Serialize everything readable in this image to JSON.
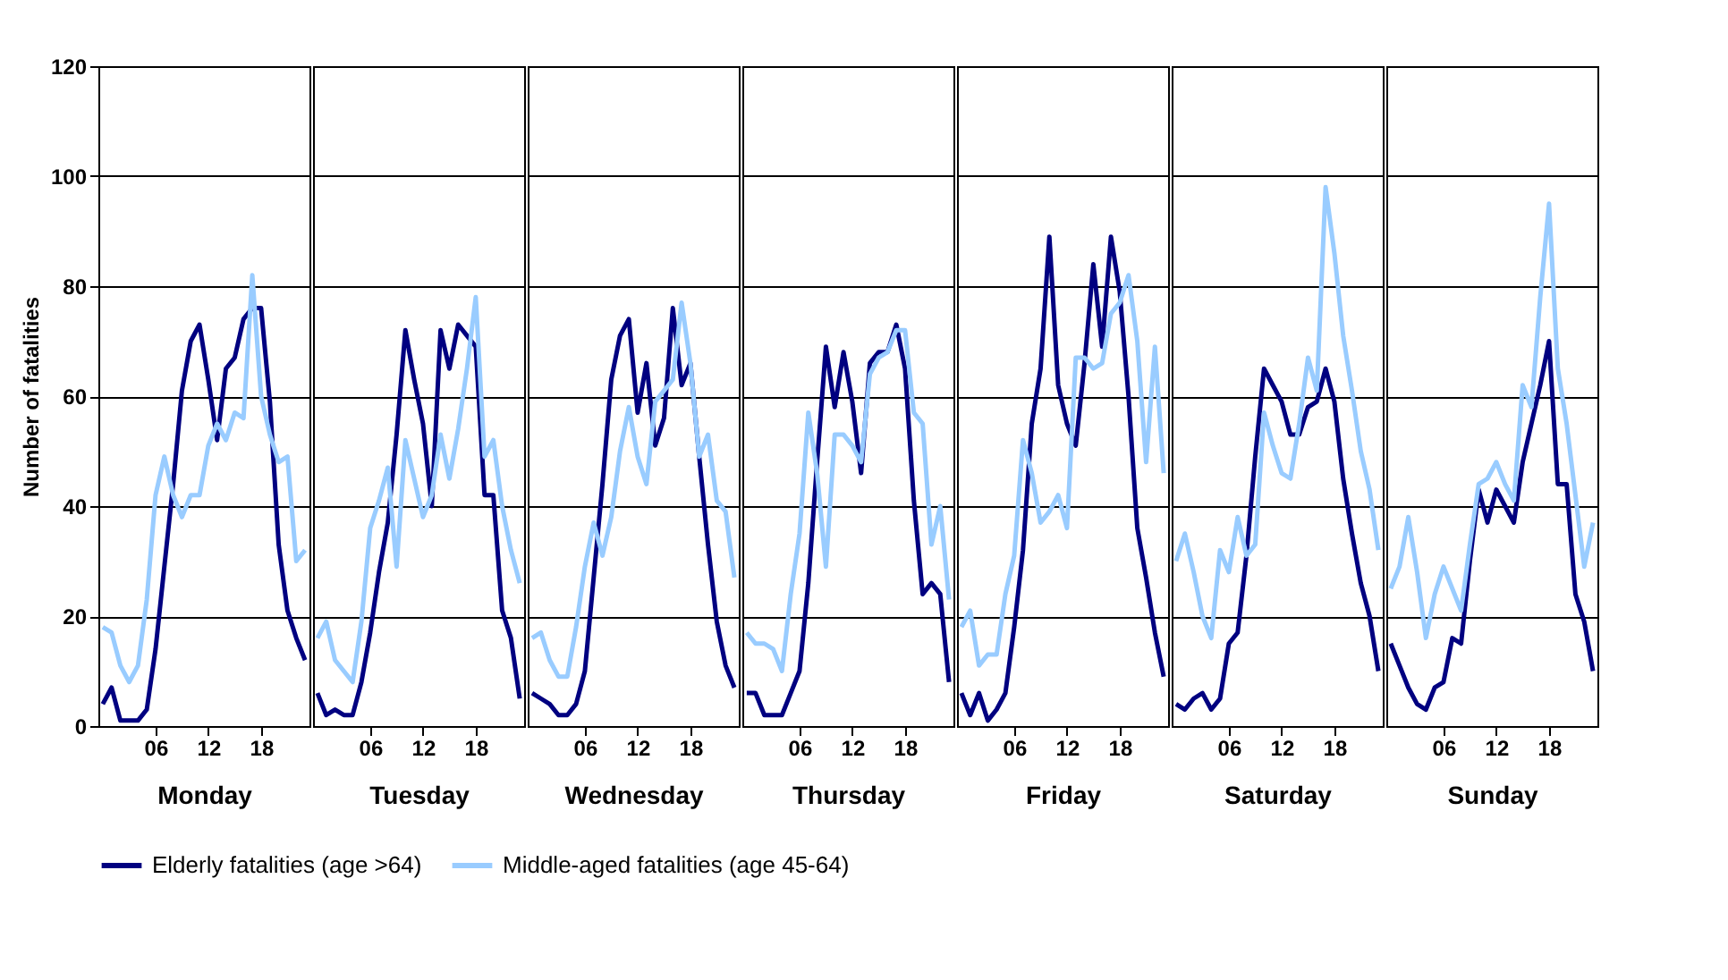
{
  "chart_data": [
    {
      "type": "line",
      "xlabel": "Monday",
      "ylabel": "Number of fatalities",
      "x": [
        0,
        1,
        2,
        3,
        4,
        5,
        6,
        7,
        8,
        9,
        10,
        11,
        12,
        13,
        14,
        15,
        16,
        17,
        18,
        19,
        20,
        21,
        22,
        23
      ],
      "xlim": [
        -0.5,
        23.5
      ],
      "xticks": [
        {
          "value": 6,
          "label": "06"
        },
        {
          "value": 12,
          "label": "12"
        },
        {
          "value": 18,
          "label": "18"
        }
      ],
      "ylim": [
        0,
        120
      ],
      "yticks": [
        0,
        20,
        40,
        60,
        80,
        100,
        120
      ],
      "grid": "y",
      "legend": "bottom",
      "marker": "none",
      "line_style": "solid",
      "series": [
        {
          "name": "Elderly fatalities (age >64)",
          "color": "#000080",
          "values": [
            4,
            7,
            1,
            1,
            1,
            3,
            14,
            29,
            44,
            61,
            70,
            73,
            63,
            52,
            65,
            67,
            74,
            76,
            76,
            59,
            33,
            21,
            16,
            12
          ]
        },
        {
          "name": "Middle-aged fatalities (age 45-64)",
          "color": "#99ccff",
          "values": [
            18,
            17,
            11,
            8,
            11,
            23,
            42,
            49,
            42,
            38,
            42,
            42,
            51,
            55,
            52,
            57,
            56,
            82,
            60,
            53,
            48,
            49,
            30,
            32
          ]
        }
      ]
    },
    {
      "type": "line",
      "xlabel": "Tuesday",
      "x": [
        0,
        1,
        2,
        3,
        4,
        5,
        6,
        7,
        8,
        9,
        10,
        11,
        12,
        13,
        14,
        15,
        16,
        17,
        18,
        19,
        20,
        21,
        22,
        23
      ],
      "xlim": [
        -0.5,
        23.5
      ],
      "xticks": [
        {
          "value": 6,
          "label": "06"
        },
        {
          "value": 12,
          "label": "12"
        },
        {
          "value": 18,
          "label": "18"
        }
      ],
      "ylim": [
        0,
        120
      ],
      "yticks": [
        0,
        20,
        40,
        60,
        80,
        100,
        120
      ],
      "grid": "y",
      "tick_labels": "x",
      "marker": "none",
      "line_style": "solid",
      "series": [
        {
          "name": "Elderly fatalities (age >64)",
          "color": "#000080",
          "values": [
            6,
            2,
            3,
            2,
            2,
            8,
            17,
            28,
            37,
            53,
            72,
            63,
            55,
            40,
            72,
            65,
            73,
            71,
            69,
            42,
            42,
            21,
            16,
            5
          ]
        },
        {
          "name": "Middle-aged fatalities (age 45-64)",
          "color": "#99ccff",
          "values": [
            16,
            19,
            12,
            10,
            8,
            19,
            36,
            41,
            47,
            29,
            52,
            45,
            38,
            42,
            53,
            45,
            54,
            65,
            78,
            49,
            52,
            40,
            32,
            26
          ]
        }
      ]
    },
    {
      "type": "line",
      "xlabel": "Wednesday",
      "x": [
        0,
        1,
        2,
        3,
        4,
        5,
        6,
        7,
        8,
        9,
        10,
        11,
        12,
        13,
        14,
        15,
        16,
        17,
        18,
        19,
        20,
        21,
        22,
        23
      ],
      "xlim": [
        -0.5,
        23.5
      ],
      "xticks": [
        {
          "value": 6,
          "label": "06"
        },
        {
          "value": 12,
          "label": "12"
        },
        {
          "value": 18,
          "label": "18"
        }
      ],
      "ylim": [
        0,
        120
      ],
      "yticks": [
        0,
        20,
        40,
        60,
        80,
        100,
        120
      ],
      "grid": "y",
      "tick_labels": "x",
      "marker": "none",
      "line_style": "solid",
      "series": [
        {
          "name": "Elderly fatalities (age >64)",
          "color": "#000080",
          "values": [
            6,
            5,
            4,
            2,
            2,
            4,
            10,
            27,
            44,
            63,
            71,
            74,
            57,
            66,
            51,
            56,
            76,
            62,
            66,
            49,
            33,
            19,
            11,
            7
          ]
        },
        {
          "name": "Middle-aged fatalities (age 45-64)",
          "color": "#99ccff",
          "values": [
            16,
            17,
            12,
            9,
            9,
            18,
            29,
            37,
            31,
            38,
            50,
            58,
            49,
            44,
            59,
            61,
            63,
            77,
            66,
            49,
            53,
            41,
            39,
            27
          ]
        }
      ]
    },
    {
      "type": "line",
      "xlabel": "Thursday",
      "x": [
        0,
        1,
        2,
        3,
        4,
        5,
        6,
        7,
        8,
        9,
        10,
        11,
        12,
        13,
        14,
        15,
        16,
        17,
        18,
        19,
        20,
        21,
        22,
        23
      ],
      "xlim": [
        -0.5,
        23.5
      ],
      "xticks": [
        {
          "value": 6,
          "label": "06"
        },
        {
          "value": 12,
          "label": "12"
        },
        {
          "value": 18,
          "label": "18"
        }
      ],
      "ylim": [
        0,
        120
      ],
      "yticks": [
        0,
        20,
        40,
        60,
        80,
        100,
        120
      ],
      "grid": "y",
      "tick_labels": "x",
      "marker": "none",
      "line_style": "solid",
      "series": [
        {
          "name": "Elderly fatalities (age >64)",
          "color": "#000080",
          "values": [
            6,
            6,
            2,
            2,
            2,
            6,
            10,
            26,
            48,
            69,
            58,
            68,
            59,
            46,
            66,
            68,
            68,
            73,
            65,
            41,
            24,
            26,
            24,
            8
          ]
        },
        {
          "name": "Middle-aged fatalities (age 45-64)",
          "color": "#99ccff",
          "values": [
            17,
            15,
            15,
            14,
            10,
            24,
            35,
            57,
            46,
            29,
            53,
            53,
            51,
            48,
            64,
            67,
            68,
            72,
            72,
            57,
            55,
            33,
            40,
            23
          ]
        }
      ]
    },
    {
      "type": "line",
      "xlabel": "Friday",
      "x": [
        0,
        1,
        2,
        3,
        4,
        5,
        6,
        7,
        8,
        9,
        10,
        11,
        12,
        13,
        14,
        15,
        16,
        17,
        18,
        19,
        20,
        21,
        22,
        23
      ],
      "xlim": [
        -0.5,
        23.5
      ],
      "xticks": [
        {
          "value": 6,
          "label": "06"
        },
        {
          "value": 12,
          "label": "12"
        },
        {
          "value": 18,
          "label": "18"
        }
      ],
      "ylim": [
        0,
        120
      ],
      "yticks": [
        0,
        20,
        40,
        60,
        80,
        100,
        120
      ],
      "grid": "y",
      "tick_labels": "x",
      "marker": "none",
      "line_style": "solid",
      "series": [
        {
          "name": "Elderly fatalities (age >64)",
          "color": "#000080",
          "values": [
            6,
            2,
            6,
            1,
            3,
            6,
            18,
            32,
            55,
            65,
            89,
            62,
            55,
            51,
            66,
            84,
            69,
            89,
            79,
            60,
            36,
            27,
            17,
            9
          ]
        },
        {
          "name": "Middle-aged fatalities (age 45-64)",
          "color": "#99ccff",
          "values": [
            18,
            21,
            11,
            13,
            13,
            24,
            31,
            52,
            46,
            37,
            39,
            42,
            36,
            67,
            67,
            65,
            66,
            75,
            77,
            82,
            70,
            48,
            69,
            46
          ]
        }
      ]
    },
    {
      "type": "line",
      "xlabel": "Saturday",
      "x": [
        0,
        1,
        2,
        3,
        4,
        5,
        6,
        7,
        8,
        9,
        10,
        11,
        12,
        13,
        14,
        15,
        16,
        17,
        18,
        19,
        20,
        21,
        22,
        23
      ],
      "xlim": [
        -0.5,
        23.5
      ],
      "xticks": [
        {
          "value": 6,
          "label": "06"
        },
        {
          "value": 12,
          "label": "12"
        },
        {
          "value": 18,
          "label": "18"
        }
      ],
      "ylim": [
        0,
        120
      ],
      "yticks": [
        0,
        20,
        40,
        60,
        80,
        100,
        120
      ],
      "grid": "y",
      "tick_labels": "x",
      "marker": "none",
      "line_style": "solid",
      "series": [
        {
          "name": "Elderly fatalities (age >64)",
          "color": "#000080",
          "values": [
            4,
            3,
            5,
            6,
            3,
            5,
            15,
            17,
            31,
            49,
            65,
            62,
            59,
            53,
            53,
            58,
            59,
            65,
            59,
            45,
            35,
            26,
            20,
            10
          ]
        },
        {
          "name": "Middle-aged fatalities (age 45-64)",
          "color": "#99ccff",
          "values": [
            30,
            35,
            28,
            20,
            16,
            32,
            28,
            38,
            31,
            33,
            57,
            51,
            46,
            45,
            55,
            67,
            61,
            98,
            86,
            71,
            61,
            50,
            43,
            32
          ]
        }
      ]
    },
    {
      "type": "line",
      "xlabel": "Sunday",
      "x": [
        0,
        1,
        2,
        3,
        4,
        5,
        6,
        7,
        8,
        9,
        10,
        11,
        12,
        13,
        14,
        15,
        16,
        17,
        18,
        19,
        20,
        21,
        22,
        23
      ],
      "xlim": [
        -0.5,
        23.5
      ],
      "xticks": [
        {
          "value": 6,
          "label": "06"
        },
        {
          "value": 12,
          "label": "12"
        },
        {
          "value": 18,
          "label": "18"
        }
      ],
      "ylim": [
        0,
        120
      ],
      "yticks": [
        0,
        20,
        40,
        60,
        80,
        100,
        120
      ],
      "grid": "y",
      "tick_labels": "x",
      "marker": "none",
      "line_style": "solid",
      "series": [
        {
          "name": "Elderly fatalities (age >64)",
          "color": "#000080",
          "values": [
            15,
            11,
            7,
            4,
            3,
            7,
            8,
            16,
            15,
            30,
            43,
            37,
            43,
            40,
            37,
            48,
            55,
            62,
            70,
            44,
            44,
            24,
            19,
            10
          ]
        },
        {
          "name": "Middle-aged fatalities (age 45-64)",
          "color": "#99ccff",
          "values": [
            25,
            29,
            38,
            28,
            16,
            24,
            29,
            25,
            21,
            33,
            44,
            45,
            48,
            44,
            41,
            62,
            58,
            78,
            95,
            65,
            55,
            42,
            29,
            37
          ]
        }
      ]
    }
  ]
}
